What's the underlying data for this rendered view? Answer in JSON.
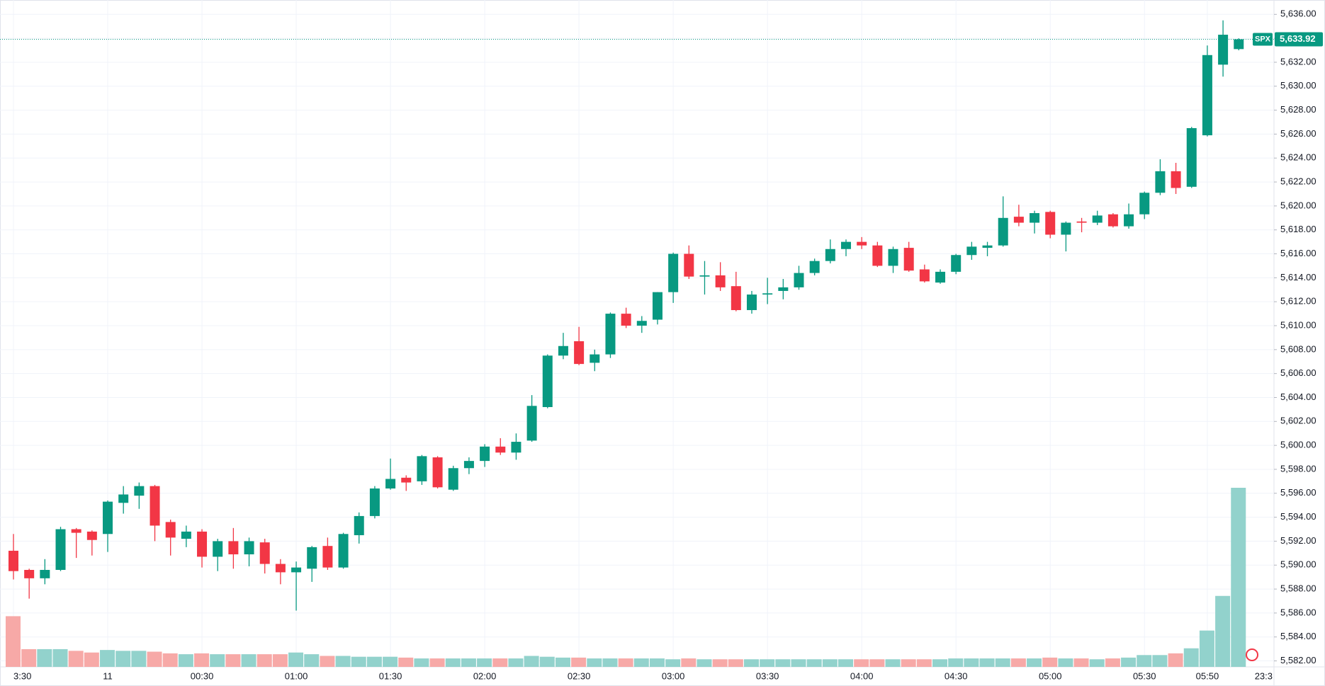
{
  "chart_data": {
    "type": "candlestick",
    "symbol": "SPX",
    "last_price": {
      "value": 5633.92,
      "label": "5,633.92"
    },
    "up_color": "#089981",
    "down_color": "#f23645",
    "volume_up_color": "#92d2cc",
    "volume_down_color": "#f7a9a7",
    "grid": true,
    "categories": [
      "3:30",
      null,
      null,
      null,
      null,
      null,
      "11",
      null,
      null,
      null,
      null,
      null,
      "00:30",
      null,
      null,
      null,
      null,
      null,
      "01:00",
      null,
      null,
      null,
      null,
      null,
      "01:30",
      null,
      null,
      null,
      null,
      null,
      "02:00",
      null,
      null,
      null,
      null,
      null,
      "02:30",
      null,
      null,
      null,
      null,
      null,
      "03:00",
      null,
      null,
      null,
      null,
      null,
      "03:30",
      null,
      null,
      null,
      null,
      null,
      "04:00",
      null,
      null,
      null,
      null,
      null,
      "04:30",
      null,
      null,
      null,
      null,
      null,
      "05:00",
      null,
      null,
      null,
      null,
      null,
      "05:30",
      null,
      null,
      null,
      "05:50",
      null,
      null
    ],
    "x_end_label": "23:3",
    "open": [
      5591.2,
      5589.6,
      5588.9,
      5589.6,
      5593.0,
      5592.8,
      5592.6,
      5595.2,
      5595.8,
      5596.6,
      5593.6,
      5592.2,
      5592.8,
      5590.7,
      5592.0,
      5590.9,
      5591.9,
      5590.1,
      5589.4,
      5589.7,
      5591.6,
      5589.8,
      5592.5,
      5594.1,
      5596.4,
      5597.3,
      5597.0,
      5599.0,
      5596.3,
      5598.1,
      5598.7,
      5599.9,
      5599.4,
      5600.4,
      5603.2,
      5607.5,
      5608.7,
      5606.9,
      5607.6,
      5611.0,
      5610.0,
      5610.5,
      5612.8,
      5616.0,
      5614.1,
      5614.2,
      5613.3,
      5611.3,
      5612.6,
      5612.9,
      5613.2,
      5614.4,
      5615.4,
      5616.4,
      5617.0,
      5616.7,
      5615.0,
      5616.5,
      5614.7,
      5613.6,
      5614.5,
      5615.9,
      5616.5,
      5616.7,
      5619.1,
      5618.6,
      5619.5,
      5617.6,
      5618.7,
      5618.6,
      5619.3,
      5618.3,
      5619.3,
      5621.1,
      5622.9,
      5621.6,
      5625.9,
      5631.8,
      5633.1
    ],
    "high": [
      5592.6,
      5589.7,
      5590.5,
      5593.2,
      5593.1,
      5592.9,
      5595.4,
      5596.6,
      5596.9,
      5596.7,
      5593.8,
      5593.3,
      5593.0,
      5592.2,
      5593.1,
      5592.3,
      5592.2,
      5590.5,
      5590.3,
      5591.6,
      5592.3,
      5592.7,
      5594.4,
      5596.6,
      5598.9,
      5597.5,
      5599.2,
      5599.1,
      5598.3,
      5599.0,
      5600.1,
      5600.6,
      5601.0,
      5604.2,
      5607.6,
      5609.4,
      5609.9,
      5608.0,
      5611.1,
      5611.5,
      5610.8,
      5612.8,
      5616.1,
      5616.7,
      5615.4,
      5615.3,
      5614.5,
      5612.9,
      5614.0,
      5613.9,
      5615.0,
      5615.6,
      5617.2,
      5617.2,
      5617.4,
      5617.0,
      5616.6,
      5617.0,
      5615.1,
      5614.7,
      5616.0,
      5617.0,
      5617.0,
      5620.8,
      5620.1,
      5619.6,
      5619.6,
      5618.7,
      5619.0,
      5619.6,
      5619.4,
      5620.2,
      5621.2,
      5623.9,
      5623.6,
      5626.6,
      5633.4,
      5635.5,
      5634.0
    ],
    "low": [
      5588.8,
      5587.2,
      5588.4,
      5589.5,
      5590.6,
      5590.8,
      5591.1,
      5594.3,
      5594.7,
      5592.0,
      5590.8,
      5591.5,
      5589.8,
      5589.5,
      5589.7,
      5589.9,
      5589.3,
      5588.4,
      5586.2,
      5588.6,
      5589.6,
      5589.7,
      5591.8,
      5593.9,
      5596.3,
      5596.2,
      5596.7,
      5596.4,
      5596.2,
      5597.6,
      5598.2,
      5599.2,
      5598.8,
      5600.3,
      5603.1,
      5607.2,
      5606.7,
      5606.2,
      5607.3,
      5609.8,
      5609.4,
      5610.1,
      5611.9,
      5613.9,
      5612.6,
      5612.9,
      5611.2,
      5611.0,
      5611.8,
      5612.2,
      5613.0,
      5614.2,
      5615.2,
      5615.8,
      5616.4,
      5614.9,
      5614.4,
      5614.5,
      5613.6,
      5613.5,
      5614.3,
      5615.5,
      5615.8,
      5616.6,
      5618.3,
      5617.7,
      5617.3,
      5616.2,
      5617.8,
      5618.4,
      5618.2,
      5618.1,
      5618.9,
      5620.9,
      5621.0,
      5621.5,
      5625.8,
      5630.8,
      5633.0
    ],
    "close": [
      5589.5,
      5588.9,
      5589.6,
      5593.0,
      5592.7,
      5592.1,
      5595.3,
      5595.9,
      5596.6,
      5593.3,
      5592.3,
      5592.8,
      5590.7,
      5592.0,
      5590.9,
      5592.0,
      5590.1,
      5589.4,
      5589.8,
      5591.5,
      5589.8,
      5592.6,
      5594.1,
      5596.4,
      5597.2,
      5596.9,
      5599.1,
      5596.5,
      5598.1,
      5598.7,
      5599.9,
      5599.4,
      5600.3,
      5603.3,
      5607.5,
      5608.3,
      5606.8,
      5607.6,
      5611.0,
      5610.0,
      5610.4,
      5612.8,
      5616.0,
      5614.1,
      5614.2,
      5613.2,
      5611.3,
      5612.6,
      5612.7,
      5613.2,
      5614.4,
      5615.4,
      5616.4,
      5617.0,
      5616.7,
      5615.0,
      5616.4,
      5614.6,
      5613.7,
      5614.5,
      5615.9,
      5616.6,
      5616.7,
      5619.0,
      5618.6,
      5619.4,
      5617.6,
      5618.6,
      5618.6,
      5619.2,
      5618.3,
      5619.3,
      5621.1,
      5622.9,
      5621.5,
      5626.5,
      5632.6,
      5634.3,
      5633.92
    ],
    "volume": [
      60,
      21,
      21,
      21,
      19,
      17,
      20,
      19,
      19,
      18,
      16,
      15,
      16,
      15,
      15,
      15,
      15,
      15,
      17,
      15,
      13,
      13,
      12,
      12,
      12,
      11,
      10,
      10,
      10,
      10,
      10,
      10,
      10,
      13,
      12,
      11,
      11,
      10,
      10,
      10,
      10,
      10,
      9,
      10,
      9,
      9,
      9,
      9,
      9,
      9,
      9,
      9,
      9,
      9,
      9,
      9,
      9,
      9,
      9,
      9,
      10,
      10,
      10,
      10,
      10,
      10,
      11,
      10,
      10,
      9,
      10,
      11,
      14,
      14,
      16,
      22,
      43,
      84,
      212
    ],
    "ylim": [
      5581.5,
      5637.2
    ],
    "yticks": [
      {
        "value": 5582,
        "label": "5,582.00"
      },
      {
        "value": 5584,
        "label": "5,584.00"
      },
      {
        "value": 5586,
        "label": "5,586.00"
      },
      {
        "value": 5588,
        "label": "5,588.00"
      },
      {
        "value": 5590,
        "label": "5,590.00"
      },
      {
        "value": 5592,
        "label": "5,592.00"
      },
      {
        "value": 5594,
        "label": "5,594.00"
      },
      {
        "value": 5596,
        "label": "5,596.00"
      },
      {
        "value": 5598,
        "label": "5,598.00"
      },
      {
        "value": 5600,
        "label": "5,600.00"
      },
      {
        "value": 5602,
        "label": "5,602.00"
      },
      {
        "value": 5604,
        "label": "5,604.00"
      },
      {
        "value": 5606,
        "label": "5,606.00"
      },
      {
        "value": 5608,
        "label": "5,608.00"
      },
      {
        "value": 5610,
        "label": "5,610.00"
      },
      {
        "value": 5612,
        "label": "5,612.00"
      },
      {
        "value": 5614,
        "label": "5,614.00"
      },
      {
        "value": 5616,
        "label": "5,616.00"
      },
      {
        "value": 5618,
        "label": "5,618.00"
      },
      {
        "value": 5620,
        "label": "5,620.00"
      },
      {
        "value": 5622,
        "label": "5,622.00"
      },
      {
        "value": 5624,
        "label": "5,624.00"
      },
      {
        "value": 5626,
        "label": "5,626.00"
      },
      {
        "value": 5628,
        "label": "5,628.00"
      },
      {
        "value": 5630,
        "label": "5,630.00"
      },
      {
        "value": 5632,
        "label": "5,632.00"
      },
      {
        "value": 5634,
        "label": "5,634.00"
      },
      {
        "value": 5636,
        "label": "5,636.00"
      }
    ]
  }
}
